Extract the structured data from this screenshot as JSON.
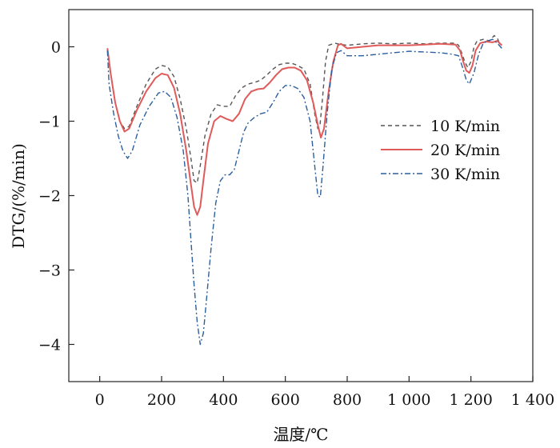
{
  "chart_data": {
    "type": "line",
    "xlabel": "温度/℃",
    "ylabel": "DTG/(%/min)",
    "xlim": [
      -100,
      1400
    ],
    "ylim": [
      -4.5,
      0.5
    ],
    "x_ticks": [
      0,
      200,
      400,
      600,
      800,
      1000,
      1200,
      1400
    ],
    "x_tick_labels": [
      "0",
      "200",
      "400",
      "600",
      "800",
      "1 000",
      "1 200",
      "1 400"
    ],
    "y_ticks": [
      0,
      -1,
      -2,
      -3,
      -4
    ],
    "y_tick_labels": [
      "0",
      "−1",
      "−2",
      "−3",
      "−4"
    ],
    "grid": false,
    "legend_position": "center-right",
    "series": [
      {
        "name": "10 K/min",
        "color": "#555555",
        "dash": "dashed",
        "points": [
          [
            25,
            -0.02
          ],
          [
            35,
            -0.35
          ],
          [
            50,
            -0.75
          ],
          [
            65,
            -1.0
          ],
          [
            80,
            -1.1
          ],
          [
            95,
            -1.07
          ],
          [
            120,
            -0.8
          ],
          [
            150,
            -0.5
          ],
          [
            180,
            -0.3
          ],
          [
            200,
            -0.25
          ],
          [
            220,
            -0.27
          ],
          [
            240,
            -0.4
          ],
          [
            260,
            -0.7
          ],
          [
            280,
            -1.1
          ],
          [
            295,
            -1.5
          ],
          [
            305,
            -1.8
          ],
          [
            315,
            -1.83
          ],
          [
            325,
            -1.6
          ],
          [
            340,
            -1.2
          ],
          [
            360,
            -0.9
          ],
          [
            380,
            -0.78
          ],
          [
            400,
            -0.8
          ],
          [
            420,
            -0.8
          ],
          [
            440,
            -0.65
          ],
          [
            460,
            -0.55
          ],
          [
            480,
            -0.5
          ],
          [
            500,
            -0.48
          ],
          [
            520,
            -0.45
          ],
          [
            540,
            -0.38
          ],
          [
            560,
            -0.3
          ],
          [
            580,
            -0.24
          ],
          [
            600,
            -0.22
          ],
          [
            620,
            -0.22
          ],
          [
            640,
            -0.25
          ],
          [
            660,
            -0.3
          ],
          [
            680,
            -0.5
          ],
          [
            695,
            -0.9
          ],
          [
            705,
            -1.1
          ],
          [
            712,
            -1.05
          ],
          [
            720,
            -0.7
          ],
          [
            730,
            -0.2
          ],
          [
            740,
            0.02
          ],
          [
            760,
            0.05
          ],
          [
            780,
            0.03
          ],
          [
            800,
            0.02
          ],
          [
            850,
            0.04
          ],
          [
            900,
            0.05
          ],
          [
            950,
            0.04
          ],
          [
            1000,
            0.05
          ],
          [
            1050,
            0.04
          ],
          [
            1100,
            0.05
          ],
          [
            1150,
            0.05
          ],
          [
            1160,
            0.02
          ],
          [
            1170,
            -0.08
          ],
          [
            1180,
            -0.2
          ],
          [
            1190,
            -0.28
          ],
          [
            1200,
            -0.2
          ],
          [
            1210,
            0.0
          ],
          [
            1220,
            0.08
          ],
          [
            1240,
            0.1
          ],
          [
            1260,
            0.08
          ],
          [
            1275,
            0.15
          ],
          [
            1285,
            0.12
          ],
          [
            1295,
            0.02
          ]
        ]
      },
      {
        "name": "20 K/min",
        "color": "#e05a5a",
        "dash": "solid",
        "points": [
          [
            25,
            -0.02
          ],
          [
            35,
            -0.35
          ],
          [
            50,
            -0.75
          ],
          [
            65,
            -1.0
          ],
          [
            80,
            -1.14
          ],
          [
            95,
            -1.1
          ],
          [
            120,
            -0.85
          ],
          [
            150,
            -0.6
          ],
          [
            180,
            -0.42
          ],
          [
            200,
            -0.36
          ],
          [
            220,
            -0.38
          ],
          [
            240,
            -0.55
          ],
          [
            260,
            -0.9
          ],
          [
            280,
            -1.4
          ],
          [
            295,
            -1.85
          ],
          [
            305,
            -2.15
          ],
          [
            315,
            -2.26
          ],
          [
            325,
            -2.15
          ],
          [
            335,
            -1.8
          ],
          [
            350,
            -1.3
          ],
          [
            370,
            -1.0
          ],
          [
            390,
            -0.93
          ],
          [
            410,
            -0.97
          ],
          [
            430,
            -1.0
          ],
          [
            450,
            -0.9
          ],
          [
            470,
            -0.7
          ],
          [
            490,
            -0.6
          ],
          [
            510,
            -0.57
          ],
          [
            530,
            -0.56
          ],
          [
            550,
            -0.48
          ],
          [
            570,
            -0.38
          ],
          [
            590,
            -0.3
          ],
          [
            610,
            -0.28
          ],
          [
            630,
            -0.28
          ],
          [
            650,
            -0.32
          ],
          [
            670,
            -0.45
          ],
          [
            690,
            -0.75
          ],
          [
            705,
            -1.05
          ],
          [
            715,
            -1.22
          ],
          [
            725,
            -1.1
          ],
          [
            740,
            -0.6
          ],
          [
            755,
            -0.2
          ],
          [
            770,
            0.02
          ],
          [
            780,
            0.04
          ],
          [
            800,
            -0.02
          ],
          [
            850,
            0.0
          ],
          [
            900,
            0.02
          ],
          [
            950,
            0.02
          ],
          [
            1000,
            0.02
          ],
          [
            1050,
            0.03
          ],
          [
            1100,
            0.04
          ],
          [
            1150,
            0.03
          ],
          [
            1165,
            -0.05
          ],
          [
            1175,
            -0.2
          ],
          [
            1185,
            -0.32
          ],
          [
            1195,
            -0.35
          ],
          [
            1205,
            -0.25
          ],
          [
            1215,
            -0.05
          ],
          [
            1230,
            0.05
          ],
          [
            1250,
            0.07
          ],
          [
            1270,
            0.06
          ],
          [
            1285,
            0.08
          ],
          [
            1300,
            0.02
          ]
        ]
      },
      {
        "name": "30 K/min",
        "color": "#2c5f9e",
        "dash": "dashdot",
        "points": [
          [
            25,
            -0.05
          ],
          [
            30,
            -0.5
          ],
          [
            45,
            -0.9
          ],
          [
            60,
            -1.2
          ],
          [
            75,
            -1.4
          ],
          [
            90,
            -1.5
          ],
          [
            105,
            -1.4
          ],
          [
            130,
            -1.05
          ],
          [
            160,
            -0.8
          ],
          [
            190,
            -0.62
          ],
          [
            210,
            -0.6
          ],
          [
            230,
            -0.68
          ],
          [
            250,
            -0.95
          ],
          [
            270,
            -1.4
          ],
          [
            285,
            -2.0
          ],
          [
            295,
            -2.6
          ],
          [
            305,
            -3.2
          ],
          [
            315,
            -3.7
          ],
          [
            325,
            -4.0
          ],
          [
            335,
            -3.85
          ],
          [
            345,
            -3.4
          ],
          [
            360,
            -2.7
          ],
          [
            375,
            -2.1
          ],
          [
            390,
            -1.8
          ],
          [
            405,
            -1.72
          ],
          [
            420,
            -1.72
          ],
          [
            435,
            -1.65
          ],
          [
            450,
            -1.4
          ],
          [
            465,
            -1.15
          ],
          [
            480,
            -1.02
          ],
          [
            500,
            -0.95
          ],
          [
            520,
            -0.9
          ],
          [
            540,
            -0.88
          ],
          [
            560,
            -0.75
          ],
          [
            580,
            -0.6
          ],
          [
            600,
            -0.52
          ],
          [
            620,
            -0.52
          ],
          [
            640,
            -0.56
          ],
          [
            660,
            -0.68
          ],
          [
            680,
            -1.0
          ],
          [
            695,
            -1.6
          ],
          [
            705,
            -2.0
          ],
          [
            713,
            -2.02
          ],
          [
            722,
            -1.6
          ],
          [
            735,
            -0.9
          ],
          [
            750,
            -0.3
          ],
          [
            765,
            -0.08
          ],
          [
            780,
            -0.05
          ],
          [
            800,
            -0.12
          ],
          [
            850,
            -0.12
          ],
          [
            900,
            -0.1
          ],
          [
            950,
            -0.08
          ],
          [
            1000,
            -0.06
          ],
          [
            1050,
            -0.07
          ],
          [
            1100,
            -0.08
          ],
          [
            1140,
            -0.1
          ],
          [
            1160,
            -0.12
          ],
          [
            1175,
            -0.3
          ],
          [
            1185,
            -0.45
          ],
          [
            1195,
            -0.5
          ],
          [
            1210,
            -0.35
          ],
          [
            1225,
            -0.1
          ],
          [
            1240,
            0.05
          ],
          [
            1255,
            0.08
          ],
          [
            1270,
            0.1
          ],
          [
            1285,
            0.05
          ],
          [
            1300,
            -0.02
          ]
        ]
      }
    ]
  }
}
